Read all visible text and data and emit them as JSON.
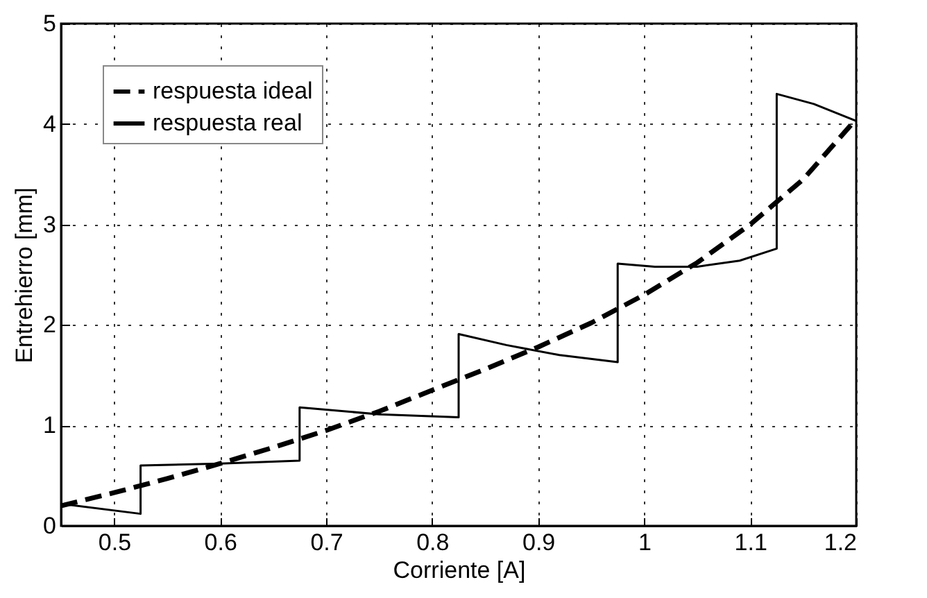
{
  "chart_data": {
    "type": "line",
    "xlabel": "Corriente [A]",
    "ylabel": "Entrehierro [mm]",
    "xlim": [
      0.45,
      1.2
    ],
    "ylim": [
      0,
      5
    ],
    "xticks": [
      0.5,
      0.6,
      0.7,
      0.8,
      0.9,
      1,
      1.1,
      1.2
    ],
    "yticks": [
      0,
      1,
      2,
      3,
      4,
      5
    ],
    "grid": true,
    "legend": "top left",
    "series": [
      {
        "name": "respuesta ideal",
        "color": "#000000",
        "line_style": "dashed",
        "x": [
          0.45,
          0.5,
          0.55,
          0.6,
          0.65,
          0.7,
          0.75,
          0.8,
          0.85,
          0.9,
          0.95,
          1.0,
          1.05,
          1.1,
          1.15,
          1.2
        ],
        "values": [
          0.2,
          0.33,
          0.47,
          0.62,
          0.78,
          0.95,
          1.14,
          1.35,
          1.56,
          1.78,
          2.02,
          2.3,
          2.62,
          3.0,
          3.45,
          4.05
        ]
      },
      {
        "name": "respuesta real",
        "color": "#000000",
        "line_style": "solid",
        "x": [
          0.45,
          0.525,
          0.525,
          0.6,
          0.675,
          0.675,
          0.75,
          0.825,
          0.825,
          0.87,
          0.92,
          0.975,
          0.975,
          1.01,
          1.05,
          1.09,
          1.125,
          1.125,
          1.16,
          1.2
        ],
        "values": [
          0.22,
          0.12,
          0.6,
          0.62,
          0.65,
          1.18,
          1.11,
          1.08,
          1.91,
          1.8,
          1.7,
          1.63,
          2.61,
          2.58,
          2.58,
          2.64,
          2.76,
          4.3,
          4.2,
          4.03
        ]
      }
    ]
  }
}
